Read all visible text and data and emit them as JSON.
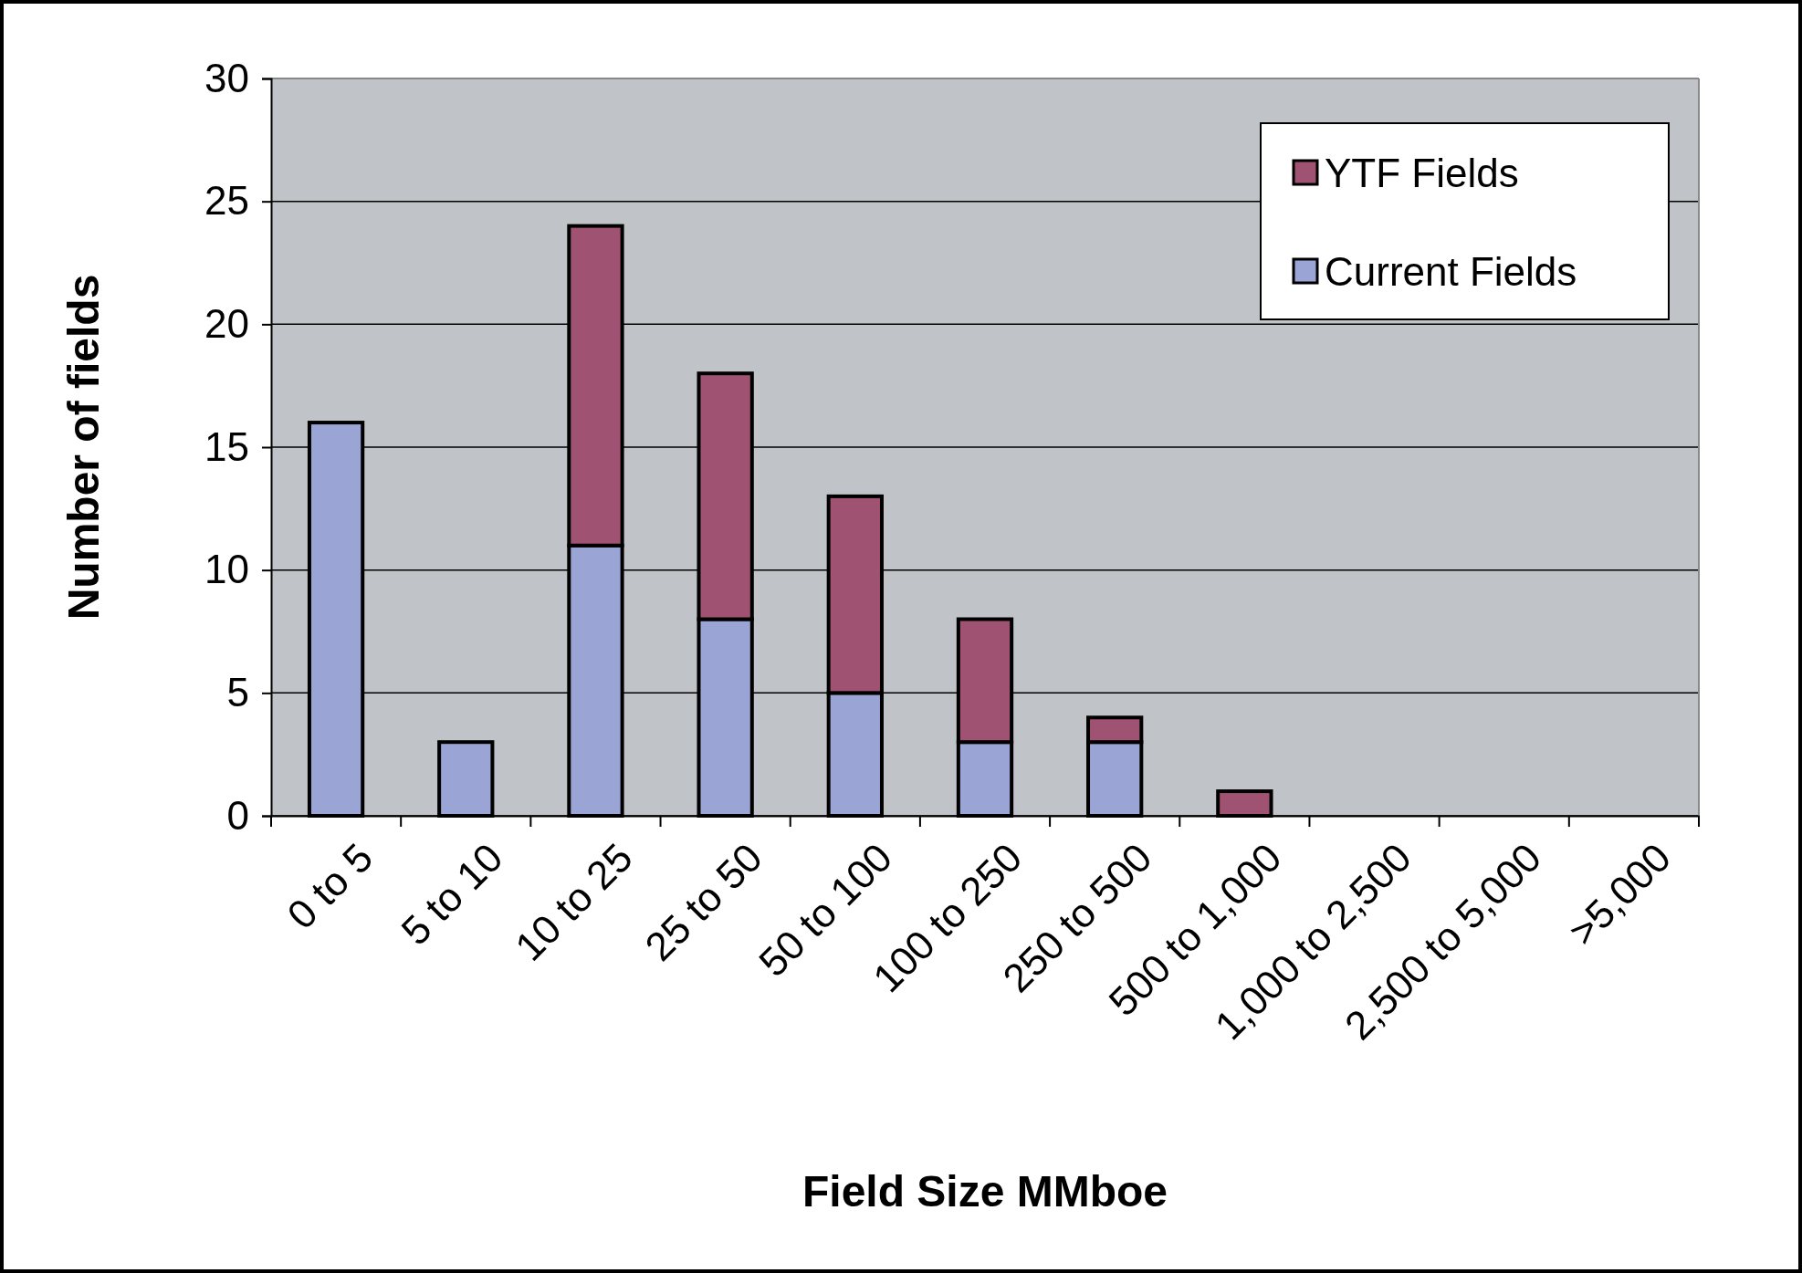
{
  "chart_data": {
    "type": "bar",
    "stacked": true,
    "xlabel": "Field Size MMboe",
    "ylabel": "Number of fields",
    "categories": [
      "0 to 5",
      "5 to 10",
      "10 to 25",
      "25 to 50",
      "50 to 100",
      "100 to 250",
      "250 to 500",
      "500 to 1,000",
      "1,000 to 2,500",
      "2,500 to 5,000",
      ">5,000"
    ],
    "series": [
      {
        "name": "Current Fields",
        "color": "#9aa5d6",
        "values": [
          16,
          3,
          11,
          8,
          5,
          3,
          3,
          0,
          0,
          0,
          0
        ]
      },
      {
        "name": "YTF Fields",
        "color": "#a05272",
        "values": [
          0,
          0,
          13,
          10,
          8,
          5,
          1,
          1,
          0,
          0,
          0
        ]
      }
    ],
    "ylim": [
      0,
      30
    ],
    "yticks": [
      0,
      5,
      10,
      15,
      20,
      25,
      30
    ],
    "grid": "y",
    "legend": "top right"
  }
}
